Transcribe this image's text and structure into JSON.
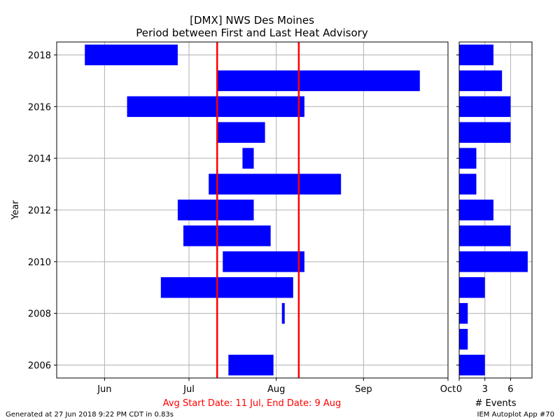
{
  "chart_data": [
    {
      "type": "bar",
      "orientation": "horizontal-range",
      "title": "[DMX] NWS Des Moines",
      "subtitle": "Period between First and Last Heat Advisory",
      "ylabel": "Year",
      "ylim": [
        2005.5,
        2018.5
      ],
      "yticks": [
        2006,
        2008,
        2010,
        2012,
        2014,
        2016,
        2018
      ],
      "xlim": [
        "05-15",
        "10-01"
      ],
      "xticks": [
        {
          "date": "06-01",
          "label": "Jun"
        },
        {
          "date": "07-01",
          "label": "Jul"
        },
        {
          "date": "08-01",
          "label": "Aug"
        },
        {
          "date": "09-01",
          "label": "Sep"
        },
        {
          "date": "10-01",
          "label": "Oct"
        }
      ],
      "grid": true,
      "bar_color": "#0000ff",
      "ranges": [
        {
          "year": 2018,
          "start": "05-25",
          "end": "06-27"
        },
        {
          "year": 2017,
          "start": "07-11",
          "end": "09-21"
        },
        {
          "year": 2016,
          "start": "06-09",
          "end": "08-11"
        },
        {
          "year": 2015,
          "start": "07-11",
          "end": "07-28"
        },
        {
          "year": 2014,
          "start": "07-20",
          "end": "07-24"
        },
        {
          "year": 2013,
          "start": "07-08",
          "end": "08-24"
        },
        {
          "year": 2012,
          "start": "06-27",
          "end": "07-24"
        },
        {
          "year": 2011,
          "start": "06-29",
          "end": "07-30"
        },
        {
          "year": 2010,
          "start": "07-13",
          "end": "08-11"
        },
        {
          "year": 2009,
          "start": "06-21",
          "end": "08-07"
        },
        {
          "year": 2008,
          "start": "08-03",
          "end": "08-04"
        },
        {
          "year": 2006,
          "start": "07-15",
          "end": "07-31"
        }
      ],
      "avg_lines": [
        {
          "date": "07-11",
          "color": "#ff0000"
        },
        {
          "date": "08-09",
          "color": "#ff0000"
        }
      ],
      "avg_label": "Avg Start Date: 11 Jul, End Date: 9 Aug",
      "avg_label_color": "#ff0000"
    },
    {
      "type": "bar",
      "orientation": "horizontal",
      "xlabel": "# Events",
      "xlim": [
        0,
        8.5
      ],
      "xticks": [
        0,
        3,
        6
      ],
      "grid": true,
      "bar_color": "#0000ff",
      "counts": [
        {
          "year": 2018,
          "value": 4
        },
        {
          "year": 2017,
          "value": 5
        },
        {
          "year": 2016,
          "value": 6
        },
        {
          "year": 2015,
          "value": 6
        },
        {
          "year": 2014,
          "value": 2
        },
        {
          "year": 2013,
          "value": 2
        },
        {
          "year": 2012,
          "value": 4
        },
        {
          "year": 2011,
          "value": 6
        },
        {
          "year": 2010,
          "value": 8
        },
        {
          "year": 2009,
          "value": 3
        },
        {
          "year": 2008,
          "value": 1
        },
        {
          "year": 2007,
          "value": 1
        },
        {
          "year": 2006,
          "value": 3
        }
      ]
    }
  ],
  "footer": {
    "generated": "Generated at 27 Jun 2018 9:22 PM CDT in 0.83s",
    "app": "IEM Autoplot App #70"
  }
}
